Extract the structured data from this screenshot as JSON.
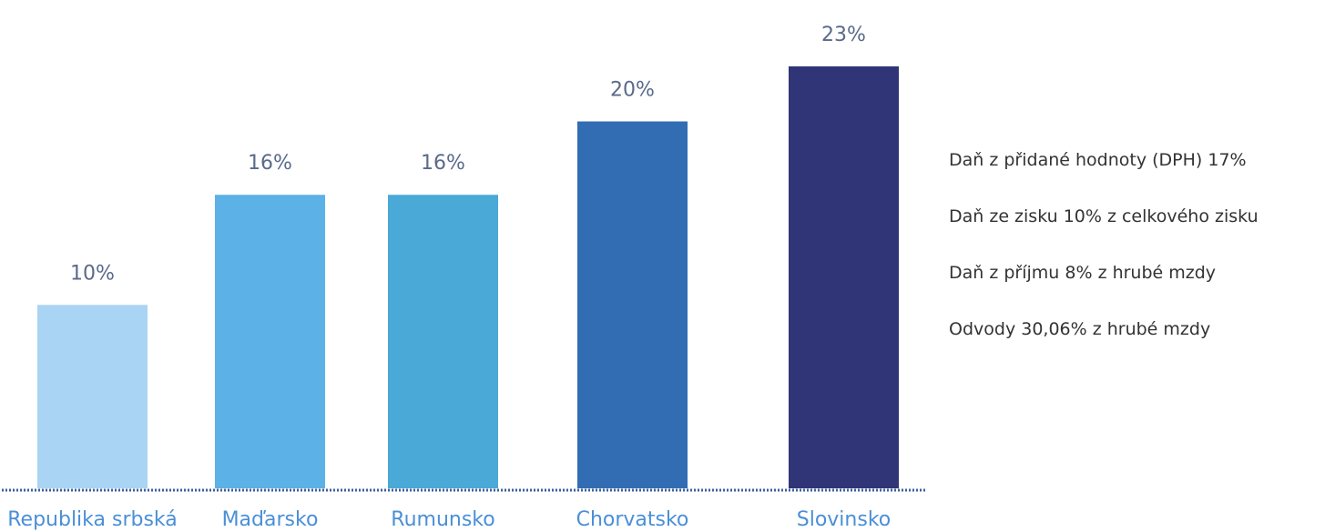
{
  "chart_data": {
    "type": "bar",
    "categories": [
      "Republika srbská",
      "Maďarsko",
      "Rumunsko",
      "Chorvatsko",
      "Slovinsko"
    ],
    "values": [
      10,
      16,
      16,
      20,
      23
    ],
    "value_labels": [
      "10%",
      "16%",
      "16%",
      "20%",
      "23%"
    ],
    "bar_colors": [
      "#a9d4f3",
      "#5cb1e6",
      "#4aa9d6",
      "#326db3",
      "#2f3577"
    ],
    "ylim": [
      0,
      26
    ],
    "grid": false,
    "axis_color": "#3d5f9e",
    "title": "",
    "xlabel": "",
    "ylabel": ""
  },
  "info": {
    "lines": [
      "Daň z přidané hodnoty (DPH) 17%",
      "Daň ze zisku 10% z celkového zisku",
      "Daň z příjmu 8% z hrubé mzdy",
      "Odvody 30,06% z hrubé mzdy"
    ]
  }
}
